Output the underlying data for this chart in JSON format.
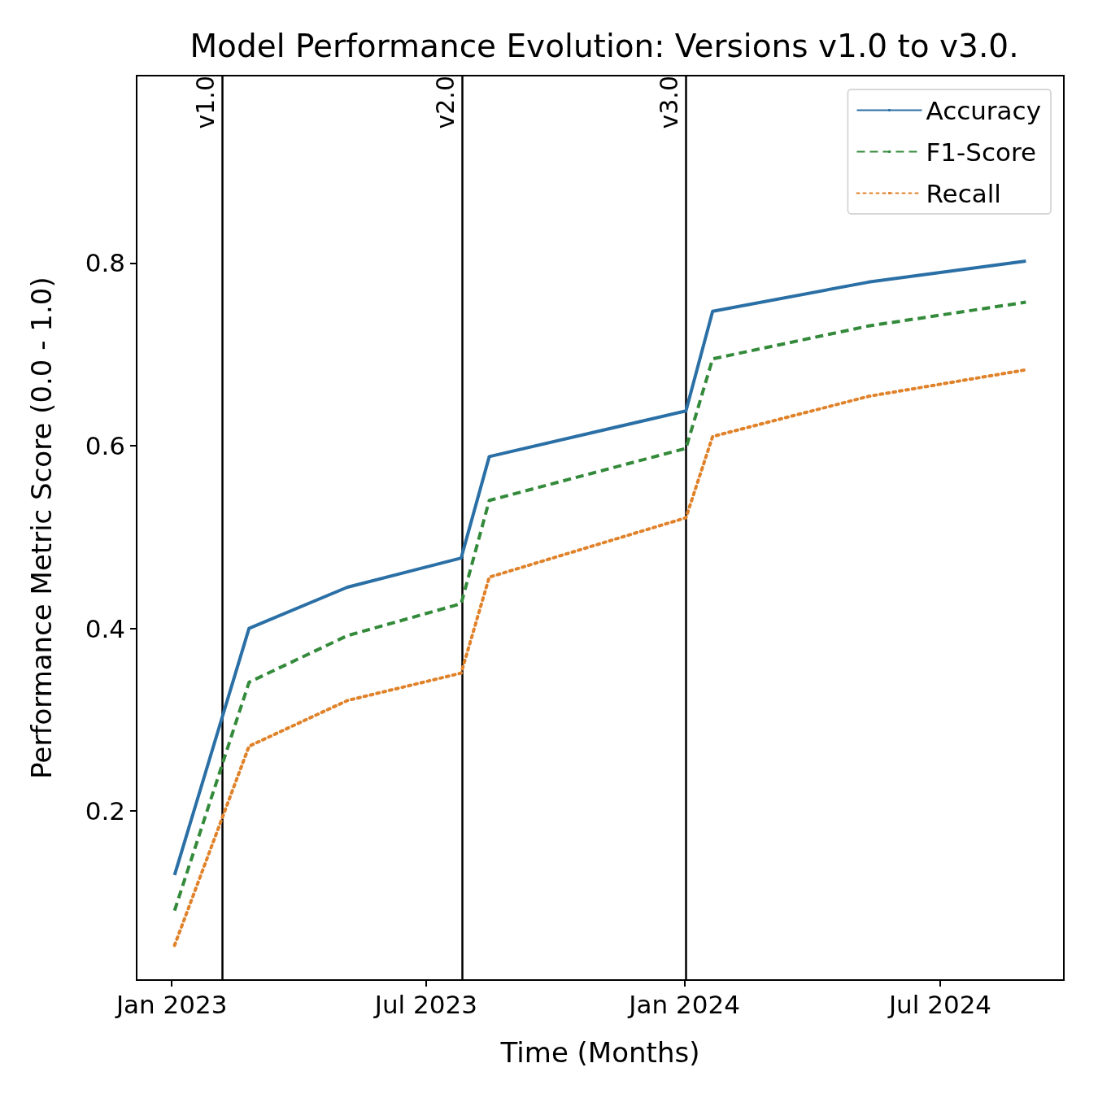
{
  "chart_data": {
    "type": "line",
    "title": "Model Performance Evolution: Versions v1.0 to v3.0.",
    "xlabel": "Time (Months)",
    "ylabel": "Performance Metric Score (0.0 - 1.0)",
    "x": [
      "2023-01-03",
      "2023-02-25",
      "2023-05-06",
      "2023-07-26",
      "2023-08-15",
      "2024-01-02",
      "2024-01-21",
      "2024-05-11",
      "2024-08-31"
    ],
    "series": [
      {
        "name": "Accuracy",
        "color": "#2a6fa5",
        "line_style": "solid",
        "values": [
          0.13,
          0.4,
          0.445,
          0.477,
          0.588,
          0.638,
          0.747,
          0.779,
          0.802
        ]
      },
      {
        "name": "F1-Score",
        "color": "#338a3a",
        "line_style": "dashed",
        "values": [
          0.091,
          0.341,
          0.392,
          0.427,
          0.54,
          0.597,
          0.695,
          0.731,
          0.757
        ]
      },
      {
        "name": "Recall",
        "color": "#e0822a",
        "line_style": "dotted",
        "values": [
          0.053,
          0.271,
          0.321,
          0.351,
          0.456,
          0.521,
          0.61,
          0.654,
          0.683
        ]
      }
    ],
    "xlim": [
      "2022-12-07",
      "2024-09-27"
    ],
    "xticks": [
      {
        "value": "2023-01-01",
        "label": "Jan 2023"
      },
      {
        "value": "2023-07-01",
        "label": "Jul 2023"
      },
      {
        "value": "2024-01-01",
        "label": "Jan 2024"
      },
      {
        "value": "2024-07-01",
        "label": "Jul 2024"
      }
    ],
    "ylim": [
      0.015,
      1.005
    ],
    "yticks": [
      0.2,
      0.4,
      0.6,
      0.8
    ],
    "ref_lines": [
      {
        "axis": "x",
        "value": "2023-02-06",
        "label": "v1.0",
        "color": "#000000"
      },
      {
        "axis": "x",
        "value": "2023-07-27",
        "label": "v2.0",
        "color": "#000000"
      },
      {
        "axis": "x",
        "value": "2024-01-02",
        "label": "v3.0",
        "color": "#000000"
      }
    ],
    "legend": "top right",
    "grid": false
  }
}
